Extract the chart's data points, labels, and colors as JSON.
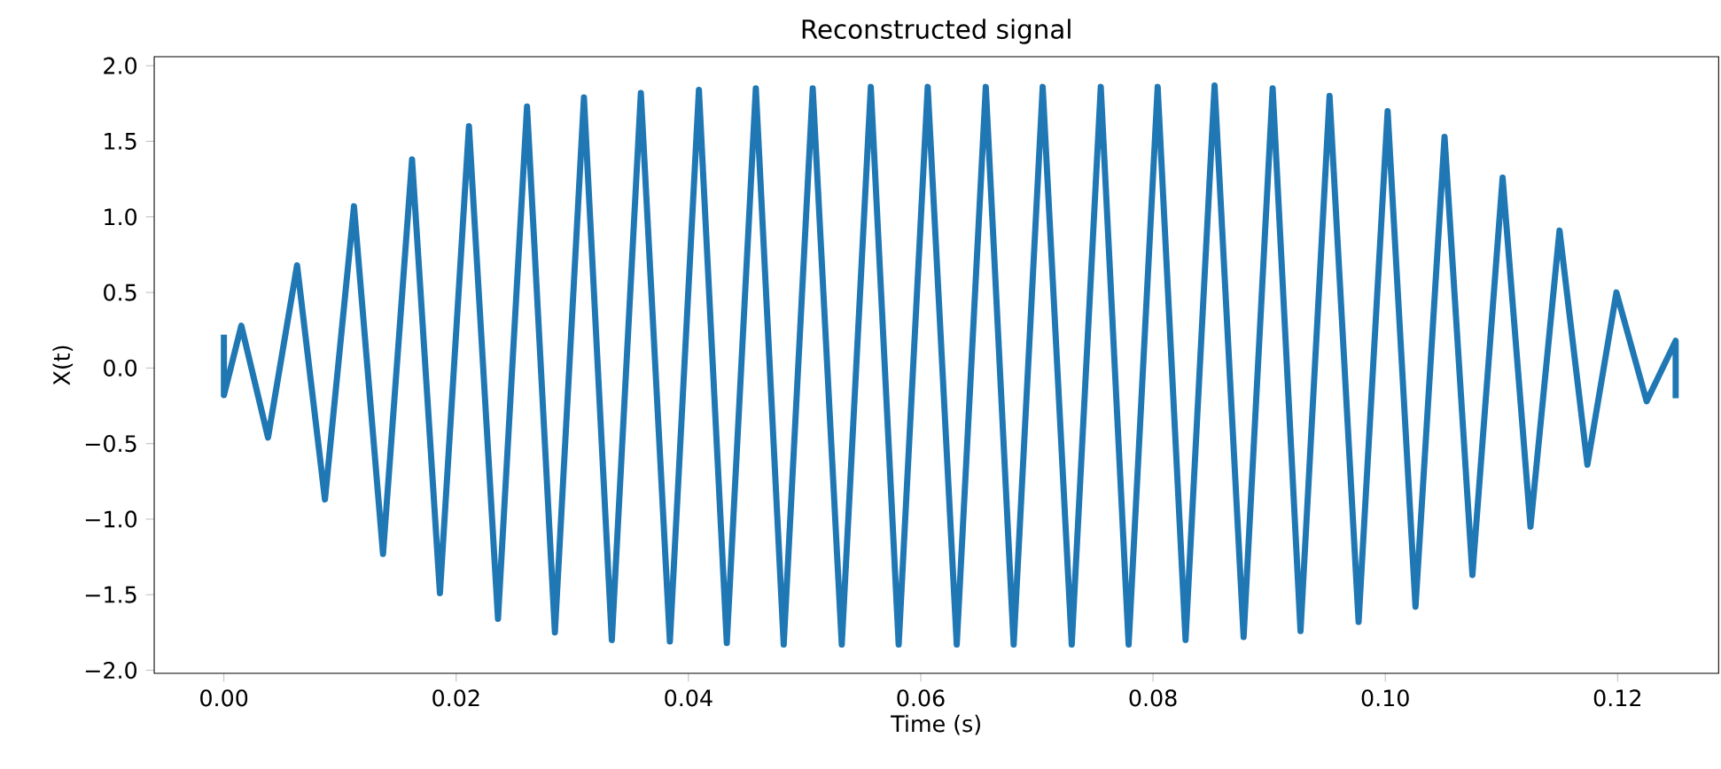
{
  "chart_data": {
    "type": "line",
    "title": "Reconstructed signal",
    "xlabel": "Time (s)",
    "ylabel": "X(t)",
    "xlim": [
      -0.006,
      0.1287
    ],
    "ylim": [
      -2.02,
      2.06
    ],
    "xticks": [
      {
        "value": 0,
        "label": "0.00"
      },
      {
        "value": 0.02,
        "label": "0.02"
      },
      {
        "value": 0.04,
        "label": "0.04"
      },
      {
        "value": 0.06,
        "label": "0.06"
      },
      {
        "value": 0.08,
        "label": "0.08"
      },
      {
        "value": 0.1,
        "label": "0.10"
      },
      {
        "value": 0.12,
        "label": "0.12"
      }
    ],
    "yticks": [
      {
        "value": -2,
        "label": "−2.0"
      },
      {
        "value": -1.5,
        "label": "−1.5"
      },
      {
        "value": -1,
        "label": "−1.0"
      },
      {
        "value": -0.5,
        "label": "−0.5"
      },
      {
        "value": 0,
        "label": "0.0"
      },
      {
        "value": 0.5,
        "label": "0.5"
      },
      {
        "value": 1,
        "label": "1.0"
      },
      {
        "value": 1.5,
        "label": "1.5"
      },
      {
        "value": 2,
        "label": "2.0"
      }
    ],
    "marker": "none",
    "line_style": "solid",
    "series": [
      {
        "color": "#1f77b4",
        "x": [
          0,
          0,
          0.0015,
          0.0038,
          0.0063,
          0.0087,
          0.0112,
          0.0137,
          0.0162,
          0.0186,
          0.0211,
          0.0236,
          0.0261,
          0.0285,
          0.031,
          0.0334,
          0.0359,
          0.0384,
          0.0409,
          0.0433,
          0.0458,
          0.0482,
          0.0507,
          0.0532,
          0.0557,
          0.0581,
          0.0606,
          0.0631,
          0.0656,
          0.068,
          0.0705,
          0.073,
          0.0755,
          0.0779,
          0.0804,
          0.0828,
          0.0853,
          0.0878,
          0.0903,
          0.0927,
          0.0952,
          0.0977,
          0.1002,
          0.1026,
          0.1051,
          0.1075,
          0.1101,
          0.1125,
          0.115,
          0.1174,
          0.1199,
          0.1225,
          0.125,
          0.125
        ],
        "values": [
          0.22,
          -0.18,
          0.28,
          -0.46,
          0.68,
          -0.87,
          1.07,
          -1.23,
          1.38,
          -1.49,
          1.6,
          -1.66,
          1.73,
          -1.75,
          1.79,
          -1.8,
          1.82,
          -1.81,
          1.84,
          -1.82,
          1.85,
          -1.83,
          1.85,
          -1.83,
          1.86,
          -1.83,
          1.86,
          -1.83,
          1.86,
          -1.83,
          1.86,
          -1.83,
          1.86,
          -1.83,
          1.86,
          -1.8,
          1.87,
          -1.78,
          1.85,
          -1.74,
          1.8,
          -1.68,
          1.7,
          -1.58,
          1.53,
          -1.37,
          1.26,
          -1.05,
          0.91,
          -0.64,
          0.5,
          -0.22,
          0.18,
          -0.2
        ]
      }
    ]
  }
}
